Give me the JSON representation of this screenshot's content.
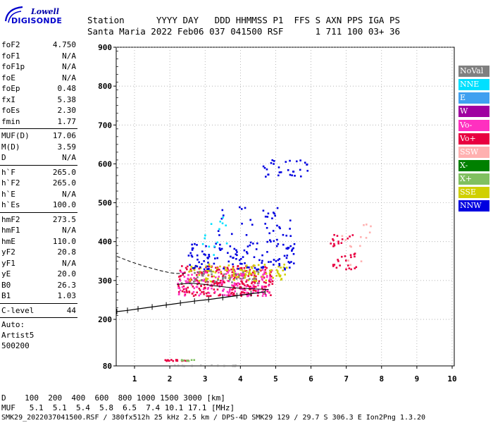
{
  "logo": {
    "line1": "Lowell",
    "line2": "DIGISONDE"
  },
  "header": {
    "labels": "Station      YYYY DAY   DDD HHMMSS P1  FFS S AXN PPS IGA PS",
    "values": "Santa Maria 2022 Feb06 037 041500 RSF      1 711 100 03+ 36"
  },
  "params": {
    "group1": [
      {
        "label": "foF2",
        "value": "4.750"
      },
      {
        "label": "foF1",
        "value": "N/A"
      },
      {
        "label": "foF1p",
        "value": "N/A"
      },
      {
        "label": "foE",
        "value": "N/A"
      },
      {
        "label": "foEp",
        "value": "0.48"
      },
      {
        "label": "fxI",
        "value": "5.38"
      },
      {
        "label": "foEs",
        "value": "2.30"
      },
      {
        "label": "fmin",
        "value": "1.77"
      }
    ],
    "group2": [
      {
        "label": "MUF(D)",
        "value": "17.06"
      },
      {
        "label": "M(D)",
        "value": "3.59"
      },
      {
        "label": "D",
        "value": "N/A"
      }
    ],
    "group3": [
      {
        "label": "h`F",
        "value": "265.0"
      },
      {
        "label": "h`F2",
        "value": "265.0"
      },
      {
        "label": "h`E",
        "value": "N/A"
      },
      {
        "label": "h`Es",
        "value": "100.0"
      }
    ],
    "group4": [
      {
        "label": "hmF2",
        "value": "273.5"
      },
      {
        "label": "hmF1",
        "value": "N/A"
      },
      {
        "label": "hmE",
        "value": "110.0"
      },
      {
        "label": "yF2",
        "value": "20.8"
      },
      {
        "label": "yF1",
        "value": "N/A"
      },
      {
        "label": "yE",
        "value": "20.0"
      },
      {
        "label": "B0",
        "value": "26.3"
      },
      {
        "label": "B1",
        "value": "1.03"
      }
    ],
    "group5": [
      {
        "label": "C-level",
        "value": "44"
      }
    ],
    "auto": [
      "Auto:",
      "Artist5",
      "500200"
    ]
  },
  "legend": [
    {
      "label": "NoVal",
      "color": "#808080"
    },
    {
      "label": "NNE",
      "color": "#00e0ff"
    },
    {
      "label": "E",
      "color": "#3fa0f0"
    },
    {
      "label": "W",
      "color": "#a000a0"
    },
    {
      "label": "Vo-",
      "color": "#ff30c0"
    },
    {
      "label": "Vo+",
      "color": "#e80040"
    },
    {
      "label": "SSW",
      "color": "#ffb0b0"
    },
    {
      "label": "X-",
      "color": "#008000"
    },
    {
      "label": "X+",
      "color": "#80c060"
    },
    {
      "label": "SSE",
      "color": "#d0d000"
    },
    {
      "label": "NNW",
      "color": "#0000e0"
    }
  ],
  "muf_table": {
    "row1": "D    100  200  400  600  800 1000 1500 3000 [km]",
    "row2": "MUF   5.1  5.1  5.4  5.8  6.5  7.4 10.1 17.1 [MHz]"
  },
  "footer": "SMK29_2022037041500.RSF / 380fx512h 25 kHz 2.5 km / DPS-4D SMK29 129 / 29.7 S 306.3 E Ion2Png 1.3.20",
  "chart_data": {
    "type": "scatter",
    "xlim": [
      0.5,
      10
    ],
    "ylim": [
      80,
      900
    ],
    "xticks": [
      1,
      2,
      3,
      4,
      5,
      6,
      7,
      8,
      9,
      10
    ],
    "yticks": [
      80,
      200,
      300,
      400,
      500,
      600,
      700,
      800,
      900
    ],
    "grid": true,
    "legend_position": "right",
    "profile_curve": [
      [
        0.5,
        220
      ],
      [
        0.8,
        223
      ],
      [
        1.1,
        227
      ],
      [
        1.5,
        232
      ],
      [
        1.9,
        237
      ],
      [
        2.3,
        242
      ],
      [
        2.7,
        247
      ],
      [
        3.1,
        251
      ],
      [
        3.5,
        256
      ],
      [
        3.9,
        261
      ],
      [
        4.3,
        266
      ],
      [
        4.7,
        271
      ]
    ],
    "dashed_curve": [
      [
        0.5,
        362
      ],
      [
        0.9,
        348
      ],
      [
        1.3,
        336
      ],
      [
        1.7,
        326
      ],
      [
        2.0,
        320
      ],
      [
        2.2,
        318
      ],
      [
        2.5,
        318
      ]
    ],
    "lower_curve": [
      [
        2.2,
        290
      ],
      [
        2.6,
        293
      ],
      [
        3.0,
        290
      ],
      [
        3.3,
        286
      ],
      [
        3.6,
        283
      ],
      [
        4.0,
        280
      ],
      [
        4.5,
        278
      ],
      [
        4.8,
        277
      ]
    ],
    "traces": [
      {
        "color": "#e80040",
        "x": [
          2.2,
          4.9
        ],
        "y": [
          262,
          340
        ],
        "n": 260
      },
      {
        "color": "#ff30c0",
        "x": [
          2.2,
          4.9
        ],
        "y": [
          262,
          330
        ],
        "n": 150
      },
      {
        "color": "#d0d000",
        "x": [
          2.5,
          5.3
        ],
        "y": [
          300,
          345
        ],
        "n": 110
      },
      {
        "color": "#0000e0",
        "x": [
          2.5,
          5.6
        ],
        "y": [
          330,
          400
        ],
        "n": 120
      },
      {
        "color": "#0000e0",
        "x": [
          4.5,
          5.9
        ],
        "y": [
          568,
          612
        ],
        "n": 30
      },
      {
        "color": "#0000e0",
        "x": [
          3.2,
          5.4
        ],
        "y": [
          400,
          500
        ],
        "n": 40
      },
      {
        "color": "#00e0ff",
        "x": [
          2.9,
          3.6
        ],
        "y": [
          360,
          475
        ],
        "n": 14
      },
      {
        "color": "#808080",
        "x": [
          2.3,
          4.5
        ],
        "y": [
          295,
          330
        ],
        "n": 40
      },
      {
        "color": "#e80040",
        "x": [
          6.5,
          7.3
        ],
        "y": [
          330,
          420
        ],
        "n": 36
      },
      {
        "color": "#ffb0b0",
        "x": [
          6.8,
          7.7
        ],
        "y": [
          340,
          450
        ],
        "n": 14
      },
      {
        "color": "#e80040",
        "x": [
          1.8,
          2.6
        ],
        "y": [
          95,
          98
        ],
        "n": 18
      },
      {
        "color": "#80c060",
        "x": [
          2.3,
          2.7
        ],
        "y": [
          95,
          98
        ],
        "n": 8
      },
      {
        "color": "#808080",
        "x": [
          1.8,
          3.9
        ],
        "y": [
          82,
          83
        ],
        "n": 14
      }
    ]
  }
}
